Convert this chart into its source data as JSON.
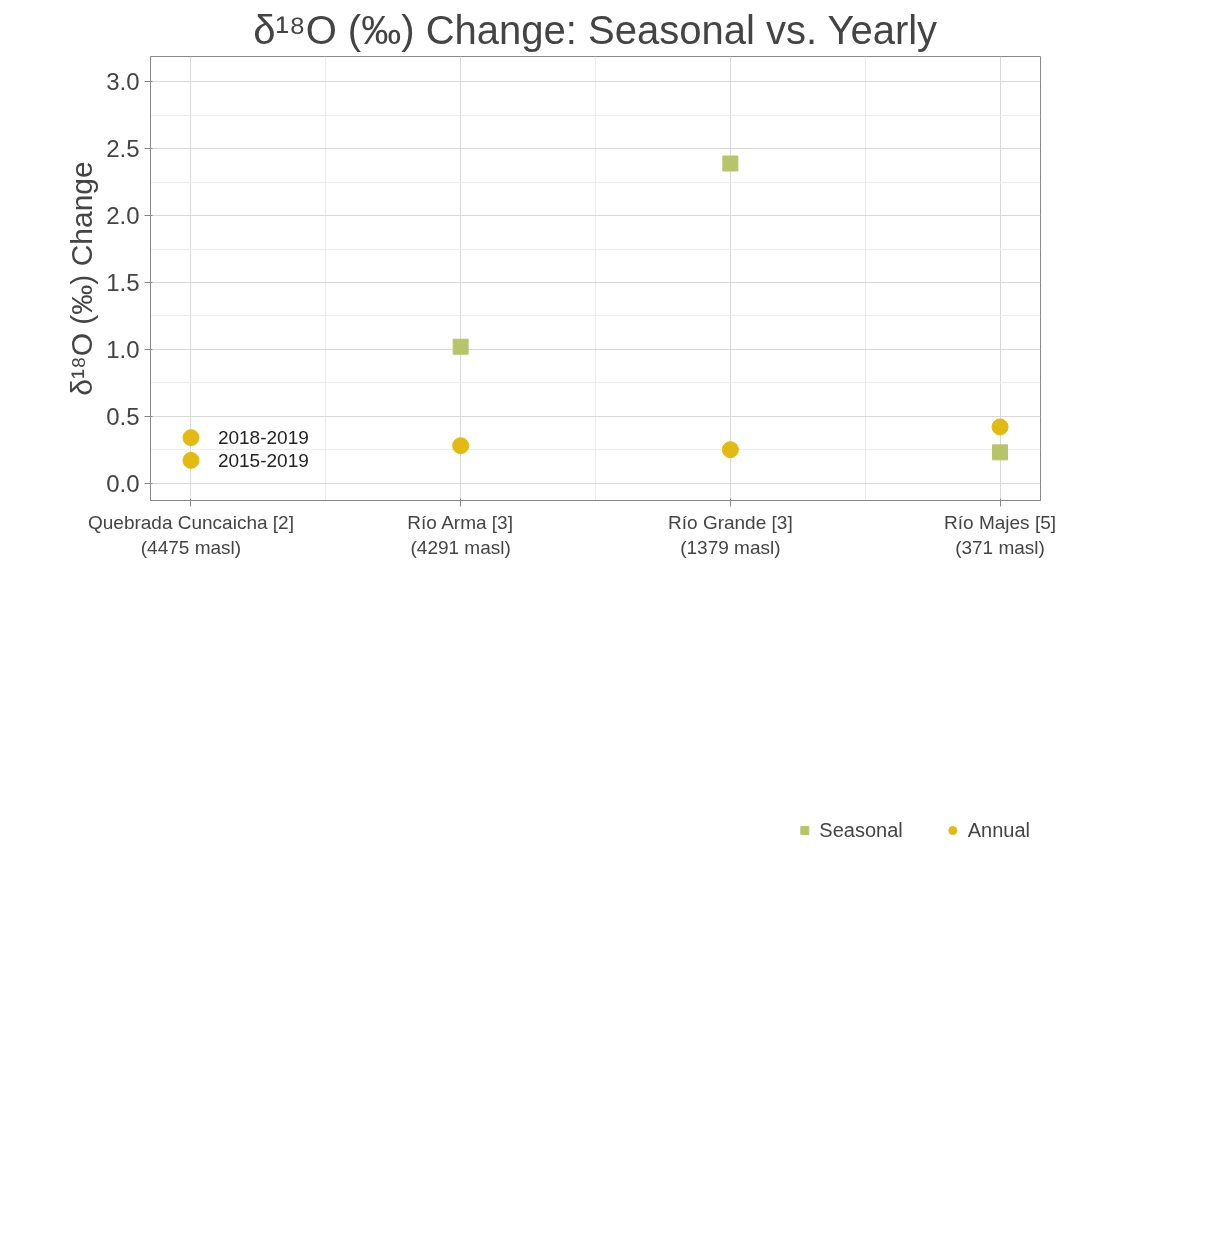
{
  "chart_data": {
    "type": "scatter",
    "title": "δ¹⁸O (‰) Change: Seasonal vs. Yearly",
    "ylabel": "δ¹⁸O (‰) Change",
    "categories": [
      "Quebrada Cuncaicha [2]\n(4475 masl)",
      "Río Arma [3]\n(4291 masl)",
      "Río Grande [3]\n(1379 masl)",
      "Río Majes [5]\n(371 masl)"
    ],
    "series": [
      {
        "name": "Seasonal",
        "color": "#b8c46a",
        "marker": "square",
        "values": [
          null,
          1.02,
          2.39,
          0.23
        ]
      },
      {
        "name": "Annual",
        "color": "#e3ba12",
        "marker": "circle",
        "x": [
          "Quebrada Cuncaicha [2]\n(4475 masl)",
          "Quebrada Cuncaicha [2]\n(4475 masl)",
          "Río Arma [3]\n(4291 masl)",
          "Río Grande [3]\n(1379 masl)",
          "Río Majes [5]\n(371 masl)"
        ],
        "values": [
          0.34,
          0.17,
          0.28,
          0.25,
          0.42
        ]
      }
    ],
    "annotations": [
      {
        "text": "2018-2019",
        "x": "Quebrada Cuncaicha [2]\n(4475 masl)",
        "y": 0.34
      },
      {
        "text": "2015-2019",
        "x": "Quebrada Cuncaicha [2]\n(4475 masl)",
        "y": 0.17
      }
    ],
    "ylim": [
      -0.13,
      3.19
    ],
    "yticks": [
      {
        "value": 0,
        "label": "0.0"
      },
      {
        "value": 0.5,
        "label": "0.5"
      },
      {
        "value": 1,
        "label": "1.0"
      },
      {
        "value": 1.5,
        "label": "1.5"
      },
      {
        "value": 2,
        "label": "2.0"
      },
      {
        "value": 2.5,
        "label": "2.5"
      },
      {
        "value": 3,
        "label": "3.0"
      }
    ],
    "grid": true,
    "legend": "bottom"
  }
}
